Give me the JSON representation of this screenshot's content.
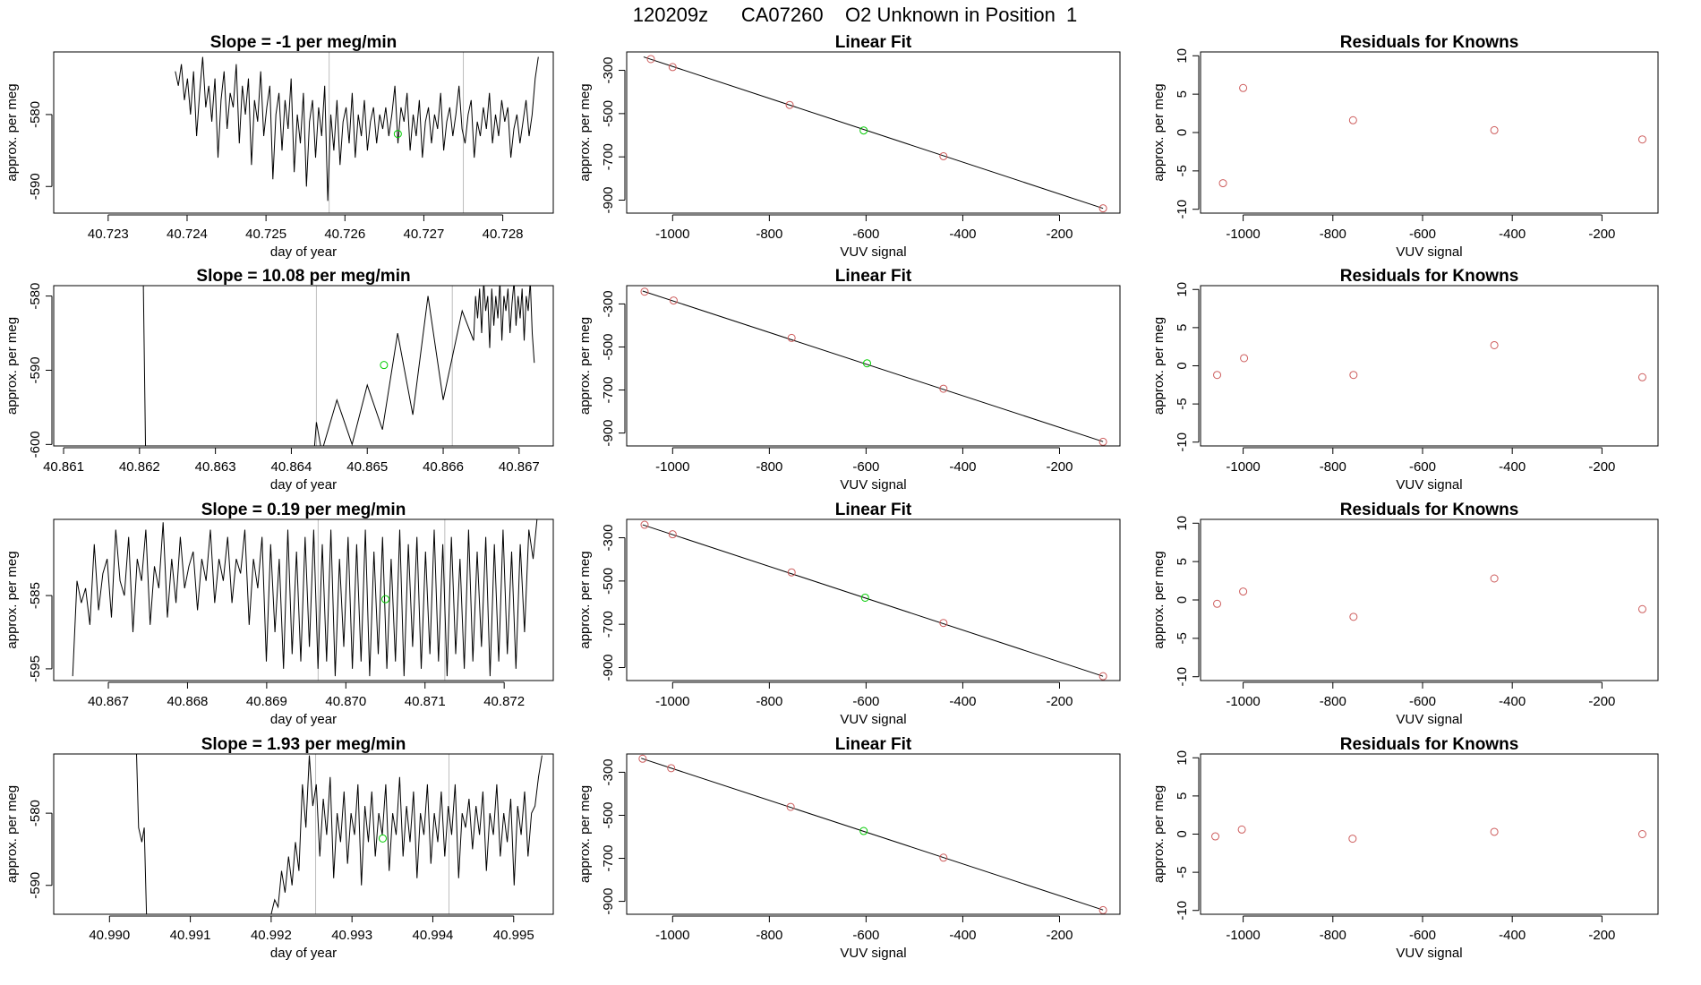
{
  "page_title": "120209z      CA07260    O2 Unknown in Position  1",
  "colors": {
    "line": "#000000",
    "frame": "#000000",
    "vline": "#bebebe",
    "known_point": "#cd5c5c",
    "unknown_point": "#00cc00"
  },
  "chart_data": [
    {
      "row": 1,
      "type": "line",
      "title": "Slope =  -1  per meg/min",
      "xlabel": "day of year",
      "ylabel": "approx. per meg",
      "xlim": [
        40.72231,
        40.72864
      ],
      "ylim": [
        -593.7,
        -571.3
      ],
      "x_ticks": [
        "40.723",
        "40.724",
        "40.725",
        "40.726",
        "40.727",
        "40.728"
      ],
      "x_tick_values": [
        40.723,
        40.724,
        40.725,
        40.726,
        40.727,
        40.728
      ],
      "y_ticks": [
        "-580",
        "-590"
      ],
      "y_tick_values": [
        -580,
        -590
      ],
      "vlines": [
        40.7258,
        40.7275
      ],
      "unknown_point": {
        "x": 40.72667,
        "y": -582.7
      },
      "series_x_range": [
        40.72385,
        40.72845
      ],
      "series_base": -580,
      "series_amp": 4,
      "series_noise": 8,
      "series_y": [
        -574,
        -576,
        -573,
        -578,
        -575,
        -580,
        -574,
        -583,
        -577,
        -572,
        -579,
        -576,
        -581,
        -575,
        -586,
        -578,
        -574,
        -582,
        -577,
        -579,
        -573,
        -584,
        -576,
        -580,
        -575,
        -587,
        -578,
        -581,
        -574,
        -583,
        -579,
        -576,
        -589,
        -580,
        -577,
        -585,
        -578,
        -582,
        -575,
        -588,
        -580,
        -584,
        -577,
        -590,
        -581,
        -578,
        -586,
        -579,
        -583,
        -576,
        -592,
        -580,
        -585,
        -578,
        -587,
        -581,
        -579,
        -584,
        -577,
        -586,
        -580,
        -583,
        -578,
        -585,
        -581,
        -579,
        -584,
        -580,
        -582,
        -579,
        -583,
        -580,
        -576,
        -584,
        -579,
        -581,
        -577,
        -585,
        -580,
        -583,
        -578,
        -586,
        -581,
        -579,
        -584,
        -580,
        -582,
        -577,
        -585,
        -581,
        -579,
        -583,
        -580,
        -576,
        -582,
        -584,
        -580,
        -578,
        -586,
        -581,
        -583,
        -579,
        -582,
        -577,
        -584,
        -580,
        -583,
        -578,
        -581,
        -579,
        -586,
        -582,
        -580,
        -584,
        -581,
        -578,
        -583,
        -580,
        -575,
        -572
      ]
    },
    {
      "row": 2,
      "type": "line",
      "title": "Slope =  10.08  per meg/min",
      "xlabel": "day of year",
      "ylabel": "approx. per meg",
      "xlim": [
        40.86087,
        40.86745
      ],
      "ylim": [
        -600.2,
        -578.6
      ],
      "x_ticks": [
        "40.861",
        "40.862",
        "40.863",
        "40.864",
        "40.865",
        "40.866",
        "40.867"
      ],
      "x_tick_values": [
        40.861,
        40.862,
        40.863,
        40.864,
        40.865,
        40.866,
        40.867
      ],
      "y_ticks": [
        "-580",
        "-590",
        "-600"
      ],
      "y_tick_values": [
        -580,
        -590,
        -600
      ],
      "vlines": [
        40.86433,
        40.86612
      ],
      "unknown_point": {
        "x": 40.86522,
        "y": -589.3
      },
      "series_x_range": [
        40.8664,
        40.8672
      ],
      "series_y": [
        -586,
        -580,
        -583,
        -579,
        -585,
        -578,
        -582,
        -580,
        -587,
        -579,
        -584,
        -580,
        -583,
        -578,
        -586,
        -580,
        -582,
        -579,
        -585,
        -581,
        -578,
        -584,
        -580,
        -583,
        -579,
        -586,
        -580,
        -582,
        -578,
        -585,
        -589
      ]
    },
    {
      "row": 3,
      "type": "line",
      "title": "Slope =  0.19  per meg/min",
      "xlabel": "day of year",
      "ylabel": "approx. per meg",
      "xlim": [
        40.86631,
        40.87262
      ],
      "ylim": [
        -596.6,
        -574.6
      ],
      "x_ticks": [
        "40.867",
        "40.868",
        "40.869",
        "40.870",
        "40.871",
        "40.872"
      ],
      "x_tick_values": [
        40.867,
        40.868,
        40.869,
        40.87,
        40.871,
        40.872
      ],
      "y_ticks": [
        "-585",
        "-595"
      ],
      "y_tick_values": [
        -585,
        -595
      ],
      "vlines": [
        40.86965,
        40.87125
      ],
      "unknown_point": {
        "x": 40.8705,
        "y": -585.5
      },
      "series_x_range": [
        40.86655,
        40.87242
      ],
      "series_y": [
        -596,
        -583,
        -586,
        -584,
        -589,
        -578,
        -587,
        -582,
        -580,
        -588,
        -576,
        -583,
        -585,
        -577,
        -590,
        -580,
        -583,
        -576,
        -589,
        -581,
        -584,
        -575,
        -588,
        -580,
        -586,
        -577,
        -584,
        -581,
        -579,
        -587,
        -580,
        -583,
        -576,
        -586,
        -580,
        -583,
        -577,
        -586,
        -580,
        -582,
        -576,
        -589,
        -580,
        -584,
        -577,
        -594,
        -578,
        -590,
        -580,
        -595,
        -576,
        -593,
        -579,
        -594,
        -577,
        -592,
        -576,
        -595,
        -578,
        -594,
        -576,
        -596,
        -580,
        -592,
        -577,
        -595,
        -578,
        -594,
        -576,
        -596,
        -579,
        -593,
        -577,
        -595,
        -580,
        -594,
        -576,
        -596,
        -578,
        -592,
        -577,
        -595,
        -579,
        -593,
        -576,
        -594,
        -578,
        -596,
        -577,
        -593,
        -580,
        -595,
        -576,
        -594,
        -579,
        -592,
        -577,
        -596,
        -578,
        -594,
        -576,
        -593,
        -579,
        -595,
        -578,
        -590,
        -576,
        -580,
        -574
      ]
    },
    {
      "row": 4,
      "type": "line",
      "title": "Slope =  1.93  per meg/min",
      "xlabel": "day of year",
      "ylabel": "approx. per meg",
      "xlim": [
        40.98931,
        40.99549
      ],
      "ylim": [
        -594,
        -571.8
      ],
      "x_ticks": [
        "40.990",
        "40.991",
        "40.992",
        "40.993",
        "40.994",
        "40.995"
      ],
      "x_tick_values": [
        40.99,
        40.991,
        40.992,
        40.993,
        40.994,
        40.995
      ],
      "y_ticks": [
        "-580",
        "-590"
      ],
      "y_tick_values": [
        -580,
        -590
      ],
      "vlines": [
        40.99255,
        40.9942
      ],
      "unknown_point": {
        "x": 40.99338,
        "y": -583.5
      },
      "series_x_range": [
        40.992,
        40.99535
      ],
      "series_y": [
        -594,
        -592,
        -593,
        -588,
        -591,
        -586,
        -590,
        -584,
        -588,
        -576,
        -582,
        -572,
        -579,
        -576,
        -586,
        -578,
        -583,
        -575,
        -589,
        -580,
        -584,
        -577,
        -587,
        -580,
        -583,
        -576,
        -590,
        -579,
        -584,
        -577,
        -586,
        -580,
        -583,
        -576,
        -588,
        -580,
        -583,
        -575,
        -586,
        -579,
        -584,
        -577,
        -589,
        -580,
        -583,
        -576,
        -587,
        -580,
        -584,
        -577,
        -586,
        -579,
        -583,
        -576,
        -589,
        -580,
        -582,
        -578,
        -585,
        -579,
        -583,
        -577,
        -588,
        -580,
        -583,
        -576,
        -586,
        -580,
        -584,
        -578,
        -590,
        -579,
        -583,
        -577,
        -586,
        -580,
        -579,
        -575,
        -572
      ]
    },
    {
      "row": 1,
      "type": "scatter+line",
      "title": "Linear Fit",
      "xlabel": "VUV signal",
      "ylabel": "approx. per meg",
      "xlim": [
        -1095,
        -75
      ],
      "ylim": [
        -960,
        -215
      ],
      "x_ticks": [
        "-1000",
        "-800",
        "-600",
        "-400",
        "-200"
      ],
      "x_tick_values": [
        -1000,
        -800,
        -600,
        -400,
        -200
      ],
      "y_ticks": [
        "-300",
        "-500",
        "-700",
        "-900"
      ],
      "y_tick_values": [
        -300,
        -500,
        -700,
        -900
      ],
      "fit_line": {
        "x": [
          -1060,
          -110
        ],
        "y": [
          -238,
          -938
        ]
      },
      "known_points": [
        {
          "x": -1045,
          "y": -248
        },
        {
          "x": -1000,
          "y": -285
        },
        {
          "x": -758,
          "y": -460
        },
        {
          "x": -440,
          "y": -697
        },
        {
          "x": -110,
          "y": -938
        }
      ],
      "unknown_point": {
        "x": -605,
        "y": -578
      }
    },
    {
      "row": 2,
      "type": "scatter+line",
      "title": "Linear Fit",
      "xlabel": "VUV signal",
      "ylabel": "approx. per meg",
      "xlim": [
        -1095,
        -75
      ],
      "ylim": [
        -960,
        -215
      ],
      "x_ticks": [
        "-1000",
        "-800",
        "-600",
        "-400",
        "-200"
      ],
      "x_tick_values": [
        -1000,
        -800,
        -600,
        -400,
        -200
      ],
      "y_ticks": [
        "-300",
        "-500",
        "-700",
        "-900"
      ],
      "y_tick_values": [
        -300,
        -500,
        -700,
        -900
      ],
      "fit_line": {
        "x": [
          -1062,
          -110
        ],
        "y": [
          -240,
          -940
        ]
      },
      "known_points": [
        {
          "x": -1058,
          "y": -243
        },
        {
          "x": -998,
          "y": -284
        },
        {
          "x": -754,
          "y": -458
        },
        {
          "x": -440,
          "y": -694
        },
        {
          "x": -110,
          "y": -941
        }
      ],
      "unknown_point": {
        "x": -598,
        "y": -576
      }
    },
    {
      "row": 3,
      "type": "scatter+line",
      "title": "Linear Fit",
      "xlabel": "VUV signal",
      "ylabel": "approx. per meg",
      "xlim": [
        -1095,
        -75
      ],
      "ylim": [
        -960,
        -215
      ],
      "x_ticks": [
        "-1000",
        "-800",
        "-600",
        "-400",
        "-200"
      ],
      "x_tick_values": [
        -1000,
        -800,
        -600,
        -400,
        -200
      ],
      "y_ticks": [
        "-300",
        "-500",
        "-700",
        "-900"
      ],
      "y_tick_values": [
        -300,
        -500,
        -700,
        -900
      ],
      "fit_line": {
        "x": [
          -1062,
          -110
        ],
        "y": [
          -240,
          -940
        ]
      },
      "known_points": [
        {
          "x": -1058,
          "y": -240
        },
        {
          "x": -1000,
          "y": -284
        },
        {
          "x": -754,
          "y": -460
        },
        {
          "x": -440,
          "y": -694
        },
        {
          "x": -110,
          "y": -940
        }
      ],
      "unknown_point": {
        "x": -602,
        "y": -577
      }
    },
    {
      "row": 4,
      "type": "scatter+line",
      "title": "Linear Fit",
      "xlabel": "VUV signal",
      "ylabel": "approx. per meg",
      "xlim": [
        -1095,
        -75
      ],
      "ylim": [
        -960,
        -215
      ],
      "x_ticks": [
        "-1000",
        "-800",
        "-600",
        "-400",
        "-200"
      ],
      "x_tick_values": [
        -1000,
        -800,
        -600,
        -400,
        -200
      ],
      "y_ticks": [
        "-300",
        "-500",
        "-700",
        "-900"
      ],
      "y_tick_values": [
        -300,
        -500,
        -700,
        -900
      ],
      "fit_line": {
        "x": [
          -1065,
          -110
        ],
        "y": [
          -235,
          -940
        ]
      },
      "known_points": [
        {
          "x": -1062,
          "y": -237
        },
        {
          "x": -1003,
          "y": -281
        },
        {
          "x": -756,
          "y": -461
        },
        {
          "x": -440,
          "y": -697
        },
        {
          "x": -110,
          "y": -941
        }
      ],
      "unknown_point": {
        "x": -605,
        "y": -573
      }
    },
    {
      "row": 1,
      "type": "scatter",
      "title": "Residuals for Knowns",
      "xlabel": "VUV signal",
      "ylabel": "approx. per meg",
      "xlim": [
        -1095,
        -75
      ],
      "ylim": [
        -10.5,
        10.5
      ],
      "x_ticks": [
        "-1000",
        "-800",
        "-600",
        "-400",
        "-200"
      ],
      "x_tick_values": [
        -1000,
        -800,
        -600,
        -400,
        -200
      ],
      "y_ticks": [
        "-10",
        "-5",
        "0",
        "5",
        "10"
      ],
      "y_tick_values": [
        -10,
        -5,
        0,
        5,
        10
      ],
      "points": [
        {
          "x": -1045,
          "y": -6.6
        },
        {
          "x": -1000,
          "y": 5.8
        },
        {
          "x": -755,
          "y": 1.6
        },
        {
          "x": -440,
          "y": 0.3
        },
        {
          "x": -110,
          "y": -0.9
        }
      ]
    },
    {
      "row": 2,
      "type": "scatter",
      "title": "Residuals for Knowns",
      "xlabel": "VUV signal",
      "ylabel": "approx. per meg",
      "xlim": [
        -1095,
        -75
      ],
      "ylim": [
        -10.5,
        10.5
      ],
      "x_ticks": [
        "-1000",
        "-800",
        "-600",
        "-400",
        "-200"
      ],
      "x_tick_values": [
        -1000,
        -800,
        -600,
        -400,
        -200
      ],
      "y_ticks": [
        "-10",
        "-5",
        "0",
        "5",
        "10"
      ],
      "y_tick_values": [
        -10,
        -5,
        0,
        5,
        10
      ],
      "points": [
        {
          "x": -1058,
          "y": -1.2
        },
        {
          "x": -998,
          "y": 1.0
        },
        {
          "x": -754,
          "y": -1.2
        },
        {
          "x": -440,
          "y": 2.7
        },
        {
          "x": -110,
          "y": -1.5
        }
      ]
    },
    {
      "row": 3,
      "type": "scatter",
      "title": "Residuals for Knowns",
      "xlabel": "VUV signal",
      "ylabel": "approx. per meg",
      "xlim": [
        -1095,
        -75
      ],
      "ylim": [
        -10.5,
        10.5
      ],
      "x_ticks": [
        "-1000",
        "-800",
        "-600",
        "-400",
        "-200"
      ],
      "x_tick_values": [
        -1000,
        -800,
        -600,
        -400,
        -200
      ],
      "y_ticks": [
        "-10",
        "-5",
        "0",
        "5",
        "10"
      ],
      "y_tick_values": [
        -10,
        -5,
        0,
        5,
        10
      ],
      "points": [
        {
          "x": -1058,
          "y": -0.5
        },
        {
          "x": -1000,
          "y": 1.1
        },
        {
          "x": -754,
          "y": -2.2
        },
        {
          "x": -440,
          "y": 2.8
        },
        {
          "x": -110,
          "y": -1.2
        }
      ]
    },
    {
      "row": 4,
      "type": "scatter",
      "title": "Residuals for Knowns",
      "xlabel": "VUV signal",
      "ylabel": "approx. per meg",
      "xlim": [
        -1095,
        -75
      ],
      "ylim": [
        -10.5,
        10.5
      ],
      "x_ticks": [
        "-1000",
        "-800",
        "-600",
        "-400",
        "-200"
      ],
      "x_tick_values": [
        -1000,
        -800,
        -600,
        -400,
        -200
      ],
      "y_ticks": [
        "-10",
        "-5",
        "0",
        "5",
        "10"
      ],
      "y_tick_values": [
        -10,
        -5,
        0,
        5,
        10
      ],
      "points": [
        {
          "x": -1062,
          "y": -0.3
        },
        {
          "x": -1003,
          "y": 0.6
        },
        {
          "x": -756,
          "y": -0.6
        },
        {
          "x": -440,
          "y": 0.3
        },
        {
          "x": -110,
          "y": 0.0
        }
      ]
    }
  ]
}
